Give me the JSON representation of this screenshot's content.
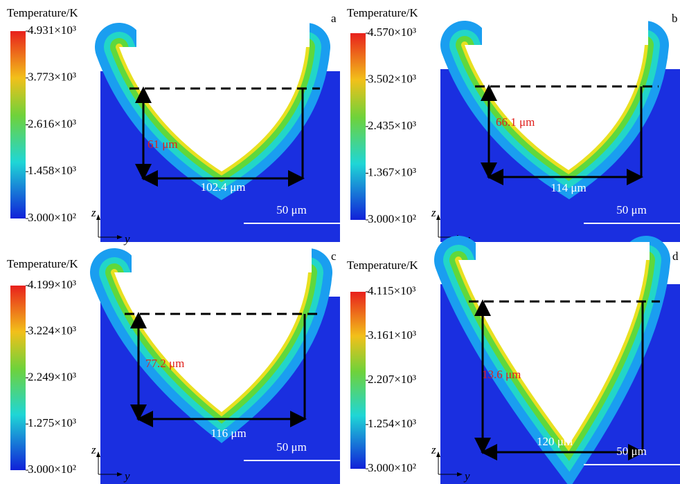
{
  "panels": [
    {
      "letter": "a",
      "colorbar_title": "Temperature/K",
      "colorbar_ticks": [
        "4.931×10³",
        "3.773×10³",
        "2.616×10³",
        "1.458×10³",
        "3.000×10²"
      ],
      "depth": "61 μm",
      "width": "102.4 μm",
      "scale_bar": "50 μm",
      "axis_z": "z",
      "axis_y": "y"
    },
    {
      "letter": "b",
      "colorbar_title": "Temperature/K",
      "colorbar_ticks": [
        "4.570×10³",
        "3.502×10³",
        "2.435×10³",
        "1.367×10³",
        "3.000×10²"
      ],
      "depth": "66.1 μm",
      "width": "114 μm",
      "scale_bar": "50 μm",
      "axis_z": "z",
      "axis_y": "y"
    },
    {
      "letter": "c",
      "colorbar_title": "Temperature/K",
      "colorbar_ticks": [
        "4.199×10³",
        "3.224×10³",
        "2.249×10³",
        "1.275×10³",
        "3.000×10²"
      ],
      "depth": "77.2 μm",
      "width": "116 μm",
      "scale_bar": "50 μm",
      "axis_z": "z",
      "axis_y": "y"
    },
    {
      "letter": "d",
      "colorbar_title": "Temperature/K",
      "colorbar_ticks": [
        "4.115×10³",
        "3.161×10³",
        "2.207×10³",
        "1.254×10³",
        "3.000×10²"
      ],
      "depth": "13.6 μm",
      "width": "120 μm",
      "scale_bar": "50 μm",
      "axis_z": "z",
      "axis_y": "y"
    }
  ]
}
